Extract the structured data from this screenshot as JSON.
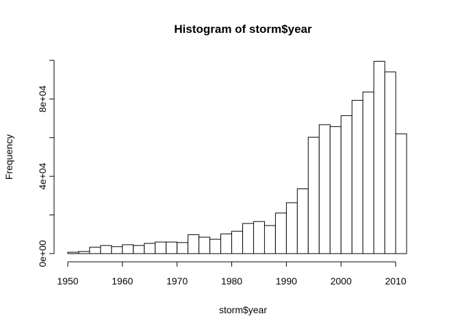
{
  "chart_data": {
    "type": "bar",
    "title": "Histogram of storm$year",
    "xlabel": "storm$year",
    "ylabel": "Frequency",
    "xlim": [
      1950,
      2012
    ],
    "ylim": [
      0,
      100000
    ],
    "bin_width": 2,
    "x_ticks": [
      1950,
      1960,
      1970,
      1980,
      1990,
      2000,
      2010
    ],
    "x_tick_labels": [
      "1950",
      "1960",
      "1970",
      "1980",
      "1990",
      "2000",
      "2010"
    ],
    "y_ticks": [
      0,
      40000,
      80000
    ],
    "y_tick_labels": [
      "0e+00",
      "4e+04",
      "8e+04"
    ],
    "bins": [
      {
        "start": 1950,
        "end": 1952,
        "count": 700
      },
      {
        "start": 1952,
        "end": 1954,
        "count": 1100
      },
      {
        "start": 1954,
        "end": 1956,
        "count": 3300
      },
      {
        "start": 1956,
        "end": 1958,
        "count": 4200
      },
      {
        "start": 1958,
        "end": 1960,
        "count": 3600
      },
      {
        "start": 1960,
        "end": 1962,
        "count": 4600
      },
      {
        "start": 1962,
        "end": 1964,
        "count": 4200
      },
      {
        "start": 1964,
        "end": 1966,
        "count": 5300
      },
      {
        "start": 1966,
        "end": 1968,
        "count": 6000
      },
      {
        "start": 1968,
        "end": 1970,
        "count": 6000
      },
      {
        "start": 1970,
        "end": 1972,
        "count": 5700
      },
      {
        "start": 1972,
        "end": 1974,
        "count": 9800
      },
      {
        "start": 1974,
        "end": 1976,
        "count": 8500
      },
      {
        "start": 1976,
        "end": 1978,
        "count": 7400
      },
      {
        "start": 1978,
        "end": 1980,
        "count": 10200
      },
      {
        "start": 1980,
        "end": 1982,
        "count": 11600
      },
      {
        "start": 1982,
        "end": 1984,
        "count": 15600
      },
      {
        "start": 1984,
        "end": 1986,
        "count": 16600
      },
      {
        "start": 1986,
        "end": 1988,
        "count": 14500
      },
      {
        "start": 1988,
        "end": 1990,
        "count": 21000
      },
      {
        "start": 1990,
        "end": 1992,
        "count": 26300
      },
      {
        "start": 1992,
        "end": 1994,
        "count": 33500
      },
      {
        "start": 1994,
        "end": 1996,
        "count": 60200
      },
      {
        "start": 1996,
        "end": 1998,
        "count": 66700
      },
      {
        "start": 1998,
        "end": 2000,
        "count": 65700
      },
      {
        "start": 2000,
        "end": 2002,
        "count": 71400
      },
      {
        "start": 2002,
        "end": 2004,
        "count": 79300
      },
      {
        "start": 2004,
        "end": 2006,
        "count": 83600
      },
      {
        "start": 2006,
        "end": 2008,
        "count": 99500
      },
      {
        "start": 2008,
        "end": 2010,
        "count": 94000
      },
      {
        "start": 2010,
        "end": 2012,
        "count": 62000
      }
    ],
    "grid": false,
    "legend": "none"
  }
}
